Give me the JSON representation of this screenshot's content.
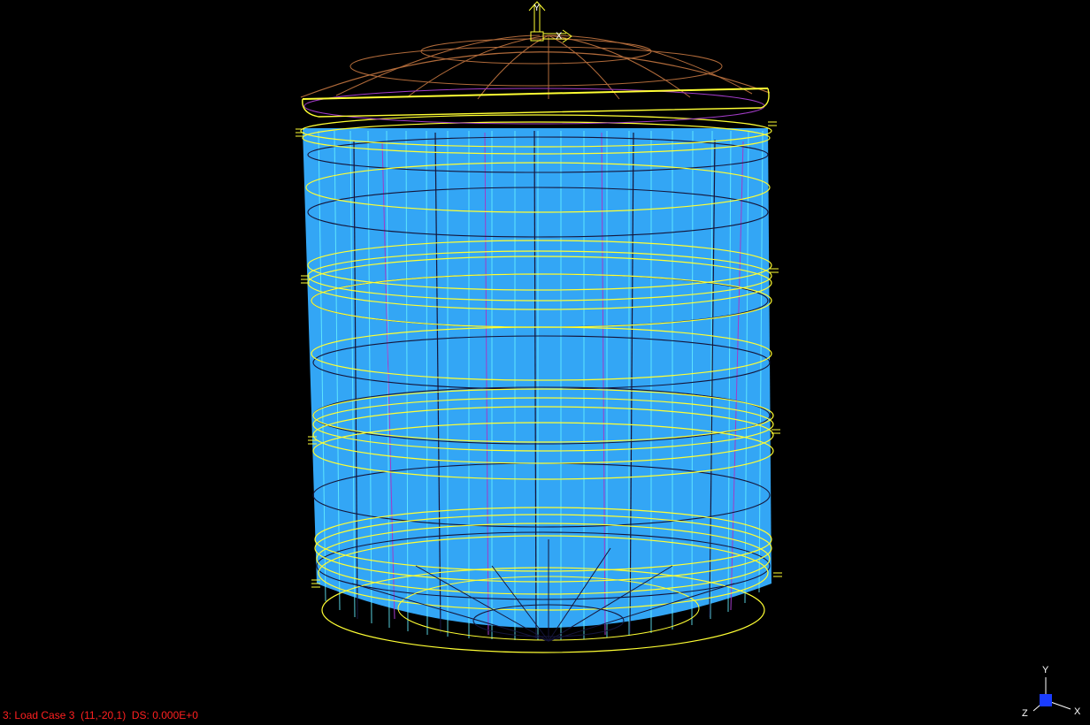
{
  "status": {
    "load_case": "3: Load Case 3",
    "node": "(11,-20,1)",
    "ds": "DS: 0.000E+0"
  },
  "model_axis": {
    "x": "X",
    "y": "Y"
  },
  "view_triad": {
    "x": "X",
    "y": "Y",
    "z": "Z"
  },
  "colors": {
    "background": "#000000",
    "shell_fill": "#33a6f5",
    "shell_edge": "#33e5ff",
    "ring": "#ffff33",
    "grid_dark": "#1a1a40",
    "grid_purple": "#a23cc8",
    "roof": "#b06a3a",
    "status": "#ff2020",
    "triad_box": "#1a3cff"
  }
}
